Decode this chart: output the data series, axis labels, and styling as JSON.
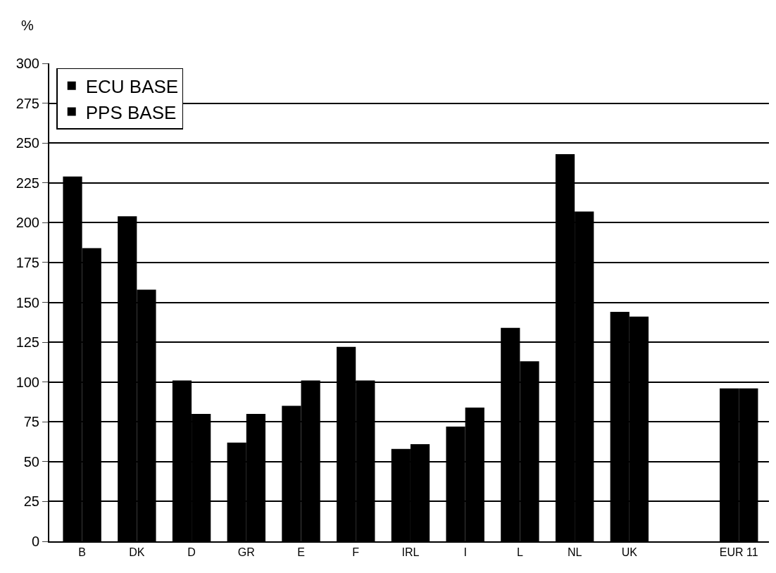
{
  "chart_data": {
    "type": "bar",
    "ylabel": "%",
    "categories": [
      "B",
      "DK",
      "D",
      "GR",
      "E",
      "F",
      "IRL",
      "I",
      "L",
      "NL",
      "UK",
      null,
      "EUR 11"
    ],
    "series": [
      {
        "name": "ECU BASE",
        "color": "#000000",
        "values": [
          229,
          204,
          101,
          62,
          85,
          122,
          58,
          72,
          134,
          243,
          144,
          null,
          96
        ]
      },
      {
        "name": "PPS BASE",
        "color": "#000000",
        "values": [
          184,
          158,
          80,
          80,
          101,
          101,
          61,
          84,
          113,
          207,
          141,
          null,
          96
        ]
      }
    ],
    "ylim": [
      0,
      300
    ],
    "yticks": [
      0,
      25,
      50,
      75,
      100,
      125,
      150,
      175,
      200,
      225,
      250,
      275,
      300
    ],
    "grid": "y",
    "legend": "top left"
  }
}
